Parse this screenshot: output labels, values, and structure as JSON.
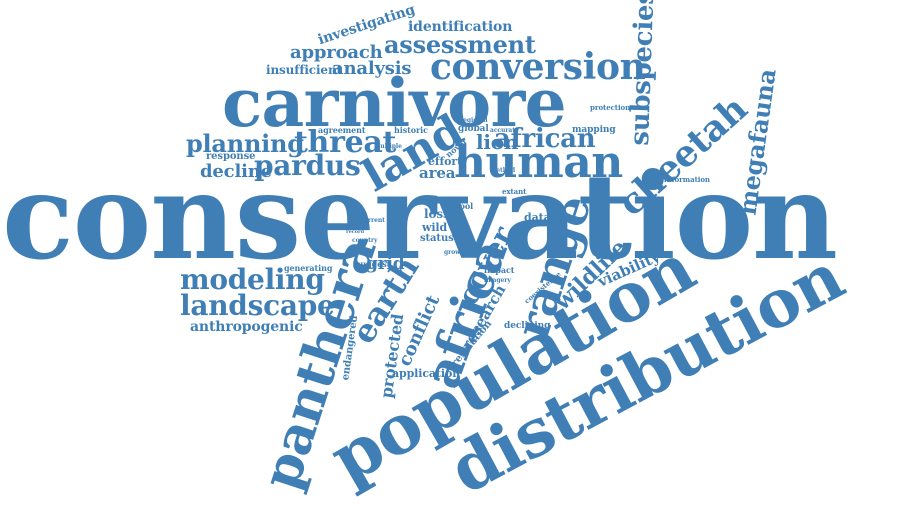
{
  "colors": {
    "text": "#3f7fb5",
    "background": "#ffffff"
  },
  "words": [
    {
      "id": "conservation",
      "text": "conservation"
    },
    {
      "id": "distribution",
      "text": "distribution"
    },
    {
      "id": "population",
      "text": "population"
    },
    {
      "id": "carnivore",
      "text": "carnivore"
    },
    {
      "id": "panthera",
      "text": "panthera"
    },
    {
      "id": "africa",
      "text": "africa"
    },
    {
      "id": "range",
      "text": "range"
    },
    {
      "id": "human",
      "text": "human"
    },
    {
      "id": "land",
      "text": "land"
    },
    {
      "id": "threat",
      "text": "threat"
    },
    {
      "id": "conversion",
      "text": "conversion"
    },
    {
      "id": "assessment",
      "text": "assessment"
    },
    {
      "id": "cheetah",
      "text": "cheetah"
    },
    {
      "id": "subspecies",
      "text": "subspecies"
    },
    {
      "id": "megafauna",
      "text": "megafauna"
    },
    {
      "id": "pardus",
      "text": "pardus"
    },
    {
      "id": "planning",
      "text": "planning"
    },
    {
      "id": "modeling",
      "text": "modeling"
    },
    {
      "id": "landscape",
      "text": "landscape"
    },
    {
      "id": "earth",
      "text": "earth"
    },
    {
      "id": "african",
      "text": "african"
    },
    {
      "id": "lion",
      "text": "lion"
    },
    {
      "id": "analysis",
      "text": "analysis"
    },
    {
      "id": "approach",
      "text": "approach"
    },
    {
      "id": "investigating",
      "text": "investigating"
    },
    {
      "id": "identification",
      "text": "identification"
    },
    {
      "id": "insufficient",
      "text": "insufficient"
    },
    {
      "id": "decline",
      "text": "decline"
    },
    {
      "id": "response",
      "text": "response"
    },
    {
      "id": "agreement",
      "text": "agreement"
    },
    {
      "id": "anthropogenic",
      "text": "anthropogenic"
    },
    {
      "id": "cover",
      "text": "cover"
    },
    {
      "id": "wildlife",
      "text": "wildlife"
    },
    {
      "id": "viability",
      "text": "viability"
    },
    {
      "id": "research",
      "text": "research"
    },
    {
      "id": "conflict",
      "text": "conflict"
    },
    {
      "id": "protected",
      "text": "protected"
    },
    {
      "id": "endangered",
      "text": "endangered"
    },
    {
      "id": "grid",
      "text": "grid"
    },
    {
      "id": "area",
      "text": "area"
    },
    {
      "id": "loss",
      "text": "loss"
    },
    {
      "id": "dataset",
      "text": "dataset"
    },
    {
      "id": "application",
      "text": "application"
    },
    {
      "id": "resolution",
      "text": "resolution"
    },
    {
      "id": "declining",
      "text": "declining"
    },
    {
      "id": "mapping",
      "text": "mapping"
    },
    {
      "id": "global",
      "text": "global"
    },
    {
      "id": "historic",
      "text": "historic"
    },
    {
      "id": "protection",
      "text": "protection"
    },
    {
      "id": "information",
      "text": "information"
    },
    {
      "id": "effort",
      "text": "effort"
    },
    {
      "id": "generating",
      "text": "generating"
    },
    {
      "id": "suggest",
      "text": "suggest"
    },
    {
      "id": "impact",
      "text": "impact"
    },
    {
      "id": "wild",
      "text": "wild"
    },
    {
      "id": "status",
      "text": "status"
    },
    {
      "id": "extant",
      "text": "extant"
    },
    {
      "id": "accurate",
      "text": "accurate"
    },
    {
      "id": "country",
      "text": "country"
    },
    {
      "id": "novel",
      "text": "novel"
    },
    {
      "id": "regional",
      "text": "regional"
    },
    {
      "id": "tool",
      "text": "tool"
    },
    {
      "id": "method",
      "text": "method"
    },
    {
      "id": "coexistence",
      "text": "coexistence"
    },
    {
      "id": "imagery",
      "text": "imagery"
    },
    {
      "id": "multiple",
      "text": "multiple"
    },
    {
      "id": "current",
      "text": "current"
    },
    {
      "id": "record",
      "text": "record"
    },
    {
      "id": "growth",
      "text": "growth"
    },
    {
      "id": "extinct",
      "text": "extinct"
    }
  ]
}
